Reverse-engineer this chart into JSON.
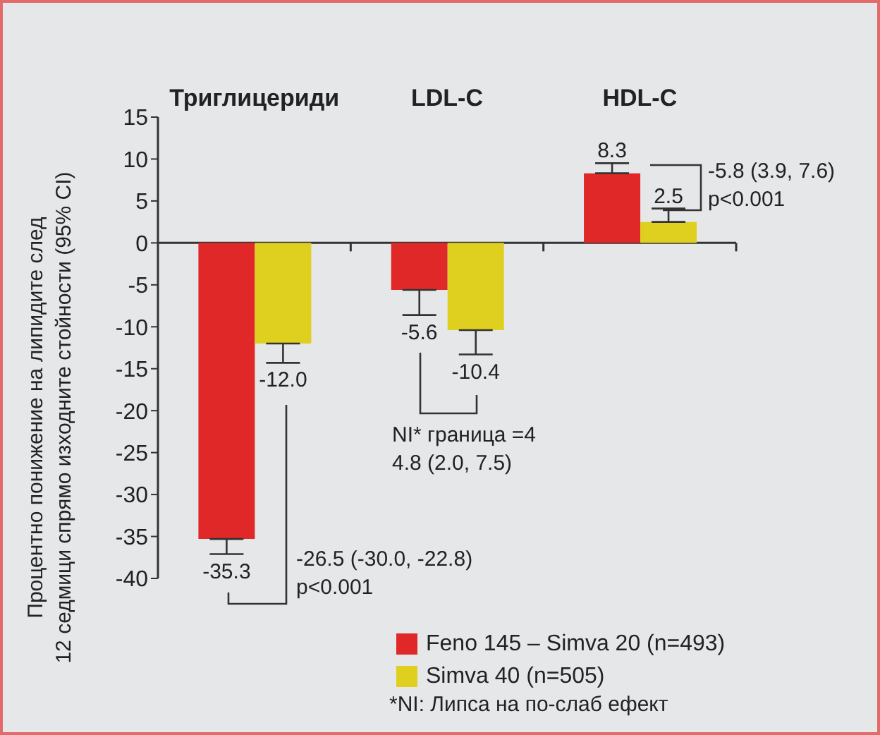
{
  "chart_data": {
    "type": "bar",
    "ylabel": "Процентно понижение на липидите след\n12 седмици спрямо изходните стойности (95% CI)",
    "categories": [
      "Триглицериди",
      "LDL-C",
      "HDL-C"
    ],
    "series": [
      {
        "name": "Feno 145 – Simva 20 (n=493)",
        "color": "#e02828",
        "values": [
          -35.3,
          -5.6,
          8.3
        ],
        "errors": [
          [
            -37.1,
            -35.3
          ],
          [
            -8.6,
            -5.6
          ],
          [
            8.3,
            9.5
          ]
        ],
        "value_labels": [
          "-35.3",
          "-5.6",
          "8.3"
        ]
      },
      {
        "name": "Simva 40 (n=505)",
        "color": "#dfcf1f",
        "values": [
          -12.0,
          -10.4,
          2.5
        ],
        "errors": [
          [
            -14.3,
            -12.0
          ],
          [
            -13.3,
            -10.4
          ],
          [
            2.5,
            4.1
          ]
        ],
        "value_labels": [
          "-12.0",
          "-10.4",
          "2.5"
        ]
      }
    ],
    "ylim": [
      -40,
      15
    ],
    "yticks": [
      -40,
      -35,
      -30,
      -25,
      -20,
      -15,
      -10,
      -5,
      0,
      5,
      10,
      15
    ],
    "legend": "bottom right",
    "annotations": [
      "-26.5 (-30.0, -22.8)\np<0.001",
      "NI* граница =4\n4.8 (2.0, 7.5)",
      "-5.8 (3.9, 7.6)\np<0.001",
      "*NI: Липса на по-слаб ефект"
    ]
  }
}
